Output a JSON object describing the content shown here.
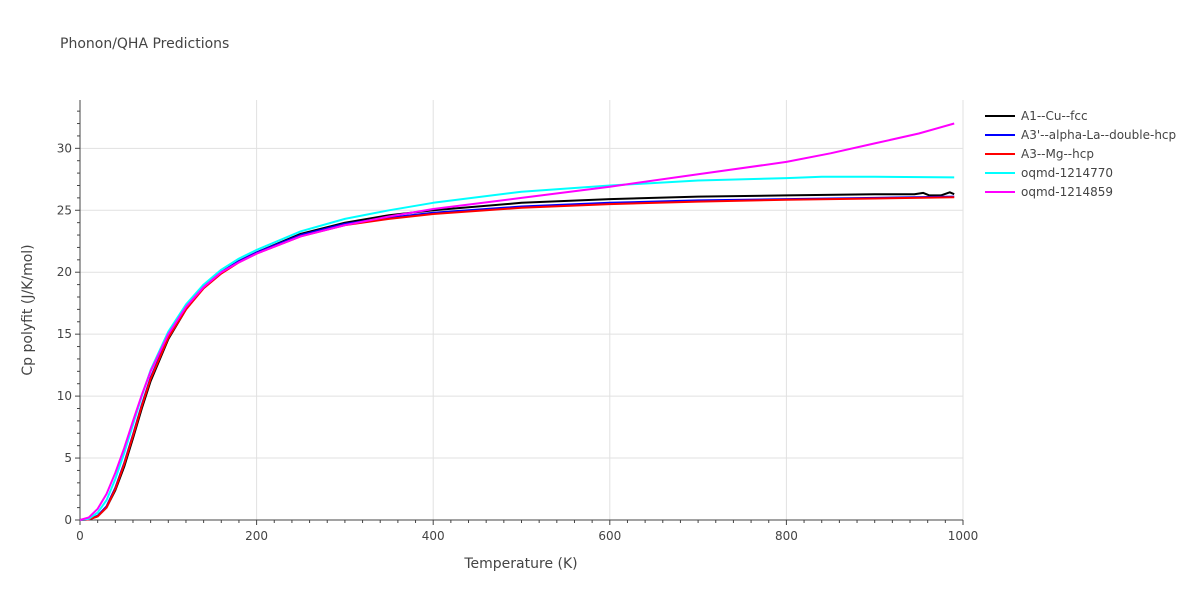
{
  "title": "Phonon/QHA Predictions",
  "chart_data": {
    "type": "line",
    "title": "Phonon/QHA Predictions",
    "xlabel": "Temperature (K)",
    "ylabel": "Cp polyfit (J/K/mol)",
    "xlim": [
      0,
      1000
    ],
    "ylim": [
      0,
      33.9
    ],
    "xticks": [
      0,
      200,
      400,
      600,
      800,
      1000
    ],
    "yticks": [
      0,
      5,
      10,
      15,
      20,
      25,
      30
    ],
    "grid": true,
    "legend_position": "top-right",
    "series": [
      {
        "name": "A1--Cu--fcc",
        "color": "#000000",
        "x": [
          0,
          10,
          20,
          30,
          40,
          50,
          60,
          70,
          80,
          100,
          120,
          140,
          160,
          180,
          200,
          250,
          300,
          350,
          400,
          500,
          600,
          700,
          800,
          900,
          945,
          955,
          962,
          975,
          985,
          990
        ],
        "y": [
          0,
          0.05,
          0.3,
          1.0,
          2.4,
          4.3,
          6.6,
          9.0,
          11.2,
          14.6,
          17.0,
          18.8,
          20.0,
          20.9,
          21.6,
          23.1,
          24.0,
          24.6,
          25.0,
          25.6,
          25.9,
          26.1,
          26.2,
          26.3,
          26.3,
          26.4,
          26.2,
          26.2,
          26.45,
          26.3
        ]
      },
      {
        "name": "A3'--alpha-La--double-hcp",
        "color": "#0000ff",
        "x": [
          0,
          10,
          20,
          30,
          40,
          50,
          60,
          70,
          80,
          100,
          120,
          140,
          160,
          180,
          200,
          250,
          300,
          350,
          400,
          500,
          600,
          700,
          800,
          900,
          990
        ],
        "y": [
          0,
          0.05,
          0.35,
          1.1,
          2.6,
          4.6,
          6.9,
          9.3,
          11.5,
          14.8,
          17.1,
          18.8,
          20.0,
          20.9,
          21.6,
          23.0,
          23.9,
          24.4,
          24.8,
          25.3,
          25.6,
          25.8,
          25.9,
          26.0,
          26.1
        ]
      },
      {
        "name": "A3--Mg--hcp",
        "color": "#ff0000",
        "x": [
          0,
          10,
          20,
          30,
          40,
          50,
          60,
          70,
          80,
          100,
          120,
          140,
          160,
          180,
          200,
          250,
          300,
          350,
          400,
          500,
          600,
          700,
          800,
          900,
          990
        ],
        "y": [
          0,
          0.05,
          0.3,
          1.0,
          2.5,
          4.5,
          6.8,
          9.2,
          11.4,
          14.7,
          17.0,
          18.7,
          19.9,
          20.8,
          21.5,
          22.9,
          23.8,
          24.3,
          24.7,
          25.2,
          25.5,
          25.7,
          25.85,
          25.95,
          26.05
        ]
      },
      {
        "name": "oqmd-1214770",
        "color": "#00ffff",
        "x": [
          0,
          10,
          20,
          30,
          40,
          50,
          60,
          70,
          80,
          100,
          120,
          140,
          160,
          180,
          200,
          250,
          300,
          350,
          400,
          500,
          600,
          700,
          800,
          840,
          900,
          990
        ],
        "y": [
          0,
          0.1,
          0.6,
          1.6,
          3.3,
          5.4,
          7.7,
          10.0,
          12.1,
          15.2,
          17.4,
          19.0,
          20.2,
          21.1,
          21.8,
          23.3,
          24.3,
          25.0,
          25.6,
          26.5,
          27.0,
          27.4,
          27.6,
          27.7,
          27.7,
          27.65
        ]
      },
      {
        "name": "oqmd-1214859",
        "color": "#ff00ff",
        "x": [
          0,
          10,
          20,
          30,
          40,
          50,
          60,
          70,
          80,
          100,
          120,
          140,
          160,
          180,
          200,
          250,
          300,
          350,
          400,
          500,
          600,
          700,
          800,
          850,
          900,
          950,
          990
        ],
        "y": [
          0,
          0.2,
          0.9,
          2.1,
          3.8,
          5.8,
          8.0,
          10.1,
          12.0,
          15.0,
          17.2,
          18.8,
          20.0,
          20.8,
          21.5,
          22.9,
          23.8,
          24.5,
          25.1,
          26.0,
          26.9,
          27.9,
          28.9,
          29.6,
          30.4,
          31.2,
          32.0
        ]
      }
    ]
  }
}
